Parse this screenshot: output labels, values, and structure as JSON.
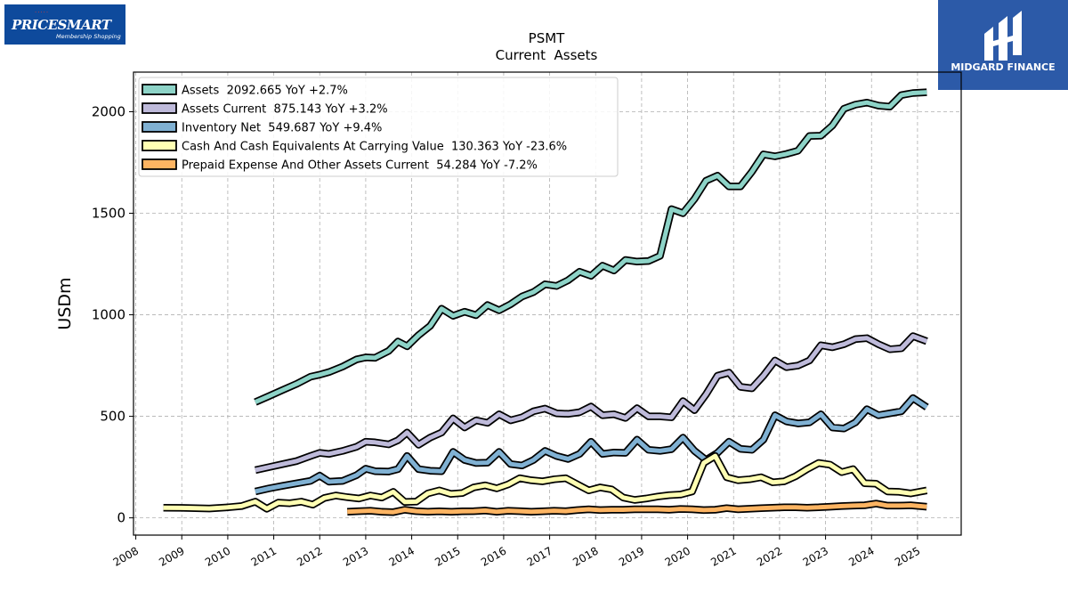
{
  "logos": {
    "left_text": "PRICESMART",
    "left_subtext": "Membership Shopping",
    "right_text": "MIDGARD FINANCE"
  },
  "chart_data": {
    "type": "line",
    "title": "PSMT",
    "subtitle": "Current  Assets",
    "ylabel": "USDm",
    "xlabel": "",
    "xlim": [
      2007.95,
      2025.95
    ],
    "ylim": [
      -85,
      2195
    ],
    "yticks": [
      0,
      500,
      1000,
      1500,
      2000
    ],
    "xticks": [
      2008,
      2009,
      2010,
      2011,
      2012,
      2013,
      2014,
      2015,
      2016,
      2017,
      2018,
      2019,
      2020,
      2021,
      2022,
      2023,
      2024,
      2025
    ],
    "grid": true,
    "legend_position": "top-left",
    "series": [
      {
        "name": "Assets",
        "legend": "Assets  2092.665 YoY +2.7%",
        "color": "#8dd3c7",
        "x": [
          2010.6,
          2010.9,
          2011.2,
          2011.5,
          2011.8,
          2012.0,
          2012.2,
          2012.5,
          2012.8,
          2013.0,
          2013.2,
          2013.5,
          2013.7,
          2013.9,
          2014.15,
          2014.4,
          2014.65,
          2014.9,
          2015.15,
          2015.4,
          2015.65,
          2015.9,
          2016.15,
          2016.4,
          2016.65,
          2016.9,
          2017.15,
          2017.4,
          2017.65,
          2017.9,
          2018.15,
          2018.4,
          2018.65,
          2018.9,
          2019.15,
          2019.4,
          2019.65,
          2019.9,
          2020.15,
          2020.4,
          2020.65,
          2020.9,
          2021.15,
          2021.4,
          2021.65,
          2021.9,
          2022.15,
          2022.4,
          2022.65,
          2022.9,
          2023.15,
          2023.4,
          2023.65,
          2023.9,
          2024.15,
          2024.4,
          2024.65,
          2024.9,
          2025.2
        ],
        "values": [
          570,
          600,
          630,
          660,
          695,
          705,
          718,
          745,
          780,
          790,
          788,
          822,
          868,
          845,
          900,
          945,
          1030,
          995,
          1015,
          998,
          1048,
          1022,
          1052,
          1090,
          1112,
          1150,
          1142,
          1170,
          1212,
          1192,
          1242,
          1218,
          1270,
          1262,
          1265,
          1290,
          1520,
          1500,
          1570,
          1660,
          1685,
          1632,
          1632,
          1705,
          1790,
          1780,
          1792,
          1808,
          1880,
          1882,
          1932,
          2015,
          2035,
          2045,
          2030,
          2025,
          2082,
          2092,
          2096
        ]
      },
      {
        "name": "Assets Current",
        "legend": "Assets Current  875.143 YoY +3.2%",
        "color": "#bebada",
        "x": [
          2010.6,
          2010.9,
          2011.2,
          2011.5,
          2011.8,
          2012.0,
          2012.2,
          2012.5,
          2012.8,
          2013.0,
          2013.2,
          2013.5,
          2013.7,
          2013.9,
          2014.15,
          2014.4,
          2014.65,
          2014.9,
          2015.15,
          2015.4,
          2015.65,
          2015.9,
          2016.15,
          2016.4,
          2016.65,
          2016.9,
          2017.15,
          2017.4,
          2017.65,
          2017.9,
          2018.15,
          2018.4,
          2018.65,
          2018.9,
          2019.15,
          2019.4,
          2019.65,
          2019.9,
          2020.15,
          2020.4,
          2020.65,
          2020.9,
          2021.15,
          2021.4,
          2021.65,
          2021.9,
          2022.15,
          2022.4,
          2022.65,
          2022.9,
          2023.15,
          2023.4,
          2023.65,
          2023.9,
          2024.15,
          2024.4,
          2024.65,
          2024.9,
          2025.2
        ],
        "values": [
          235,
          250,
          265,
          280,
          305,
          320,
          315,
          330,
          350,
          375,
          372,
          362,
          382,
          420,
          360,
          395,
          420,
          490,
          445,
          480,
          468,
          510,
          480,
          495,
          525,
          538,
          515,
          512,
          520,
          548,
          505,
          510,
          492,
          540,
          500,
          500,
          495,
          575,
          530,
          608,
          700,
          715,
          645,
          638,
          700,
          775,
          742,
          750,
          775,
          850,
          840,
          855,
          880,
          885,
          855,
          830,
          835,
          895,
          870
        ]
      },
      {
        "name": "Inventory Net",
        "legend": "Inventory Net  549.687 YoY +9.4%",
        "color": "#80b1d3",
        "x": [
          2010.6,
          2010.9,
          2011.2,
          2011.5,
          2011.8,
          2012.0,
          2012.2,
          2012.5,
          2012.8,
          2013.0,
          2013.2,
          2013.5,
          2013.7,
          2013.9,
          2014.15,
          2014.4,
          2014.65,
          2014.9,
          2015.15,
          2015.4,
          2015.65,
          2015.9,
          2016.15,
          2016.4,
          2016.65,
          2016.9,
          2017.15,
          2017.4,
          2017.65,
          2017.9,
          2018.15,
          2018.4,
          2018.65,
          2018.9,
          2019.15,
          2019.4,
          2019.65,
          2019.9,
          2020.15,
          2020.4,
          2020.65,
          2020.9,
          2021.15,
          2021.4,
          2021.65,
          2021.9,
          2022.15,
          2022.4,
          2022.65,
          2022.9,
          2023.15,
          2023.4,
          2023.65,
          2023.9,
          2024.15,
          2024.4,
          2024.65,
          2024.9,
          2025.2
        ],
        "values": [
          130,
          145,
          158,
          170,
          182,
          208,
          178,
          182,
          210,
          242,
          230,
          228,
          240,
          305,
          240,
          232,
          230,
          325,
          285,
          270,
          272,
          325,
          265,
          258,
          285,
          330,
          305,
          290,
          315,
          375,
          315,
          322,
          320,
          385,
          335,
          330,
          338,
          395,
          330,
          285,
          320,
          375,
          340,
          335,
          385,
          505,
          475,
          465,
          470,
          510,
          445,
          440,
          470,
          535,
          505,
          515,
          525,
          590,
          545
        ]
      },
      {
        "name": "Cash And Cash Equivalents At Carrying Value",
        "legend": "Cash And Cash Equivalents At Carrying Value  130.363 YoY -23.6%",
        "color": "#ffffb3",
        "x": [
          2008.6,
          2009.0,
          2009.3,
          2009.6,
          2010.0,
          2010.3,
          2010.6,
          2010.85,
          2011.1,
          2011.35,
          2011.6,
          2011.85,
          2012.1,
          2012.35,
          2012.6,
          2012.85,
          2013.1,
          2013.35,
          2013.6,
          2013.85,
          2014.1,
          2014.35,
          2014.6,
          2014.85,
          2015.1,
          2015.35,
          2015.6,
          2015.85,
          2016.1,
          2016.35,
          2016.6,
          2016.85,
          2017.1,
          2017.35,
          2017.6,
          2017.85,
          2018.1,
          2018.35,
          2018.6,
          2018.85,
          2019.1,
          2019.35,
          2019.6,
          2019.85,
          2020.1,
          2020.35,
          2020.6,
          2020.85,
          2021.1,
          2021.35,
          2021.6,
          2021.85,
          2022.1,
          2022.35,
          2022.6,
          2022.85,
          2023.1,
          2023.35,
          2023.6,
          2023.85,
          2024.1,
          2024.35,
          2024.6,
          2024.85,
          2025.2
        ],
        "values": [
          50,
          49,
          48,
          46,
          52,
          58,
          80,
          45,
          75,
          72,
          80,
          65,
          98,
          110,
          102,
          95,
          110,
          100,
          128,
          78,
          80,
          120,
          135,
          118,
          122,
          150,
          160,
          145,
          165,
          195,
          185,
          180,
          190,
          195,
          165,
          135,
          150,
          140,
          100,
          88,
          95,
          105,
          112,
          115,
          130,
          270,
          305,
          200,
          185,
          190,
          200,
          175,
          180,
          205,
          240,
          270,
          262,
          225,
          240,
          170,
          168,
          130,
          128,
          120,
          135
        ]
      },
      {
        "name": "Prepaid Expense And Other Assets Current",
        "legend": "Prepaid Expense And Other Assets Current  54.284 YoY -7.2%",
        "color": "#fdb462",
        "x": [
          2012.6,
          2012.85,
          2013.1,
          2013.35,
          2013.6,
          2013.85,
          2014.1,
          2014.35,
          2014.6,
          2014.85,
          2015.1,
          2015.35,
          2015.6,
          2015.85,
          2016.1,
          2016.35,
          2016.6,
          2016.85,
          2017.1,
          2017.35,
          2017.6,
          2017.85,
          2018.1,
          2018.35,
          2018.6,
          2018.85,
          2019.1,
          2019.35,
          2019.6,
          2019.85,
          2020.1,
          2020.35,
          2020.6,
          2020.85,
          2021.1,
          2021.35,
          2021.6,
          2021.85,
          2022.1,
          2022.35,
          2022.6,
          2022.85,
          2023.1,
          2023.35,
          2023.6,
          2023.85,
          2024.1,
          2024.35,
          2024.6,
          2024.85,
          2025.2
        ],
        "values": [
          30,
          33,
          35,
          30,
          28,
          40,
          33,
          30,
          32,
          30,
          32,
          33,
          36,
          30,
          35,
          33,
          30,
          32,
          35,
          33,
          38,
          42,
          38,
          40,
          40,
          42,
          42,
          42,
          40,
          44,
          42,
          38,
          40,
          48,
          42,
          45,
          48,
          50,
          52,
          52,
          50,
          52,
          55,
          58,
          60,
          62,
          70,
          60,
          60,
          62,
          55
        ]
      }
    ]
  }
}
